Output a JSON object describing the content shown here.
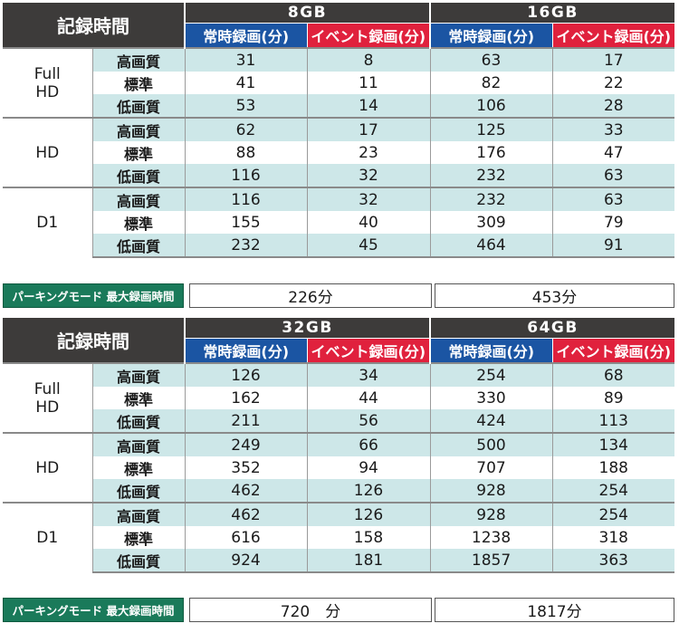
{
  "tables": [
    {
      "title": "記録時間",
      "caps": [
        "8GB",
        "16GB"
      ],
      "sub_continuous": "常時録画(分)",
      "sub_event": "イベント録画(分)",
      "groups": [
        {
          "name": "Full\nHD",
          "rows": [
            {
              "quality": "高画質",
              "values": [
                "31",
                "8",
                "63",
                "17"
              ]
            },
            {
              "quality": "標準",
              "values": [
                "41",
                "11",
                "82",
                "22"
              ]
            },
            {
              "quality": "低画質",
              "values": [
                "53",
                "14",
                "106",
                "28"
              ]
            }
          ]
        },
        {
          "name": "HD",
          "rows": [
            {
              "quality": "高画質",
              "values": [
                "62",
                "17",
                "125",
                "33"
              ]
            },
            {
              "quality": "標準",
              "values": [
                "88",
                "23",
                "176",
                "47"
              ]
            },
            {
              "quality": "低画質",
              "values": [
                "116",
                "32",
                "232",
                "63"
              ]
            }
          ]
        },
        {
          "name": "D1",
          "rows": [
            {
              "quality": "高画質",
              "values": [
                "116",
                "32",
                "232",
                "63"
              ]
            },
            {
              "quality": "標準",
              "values": [
                "155",
                "40",
                "309",
                "79"
              ]
            },
            {
              "quality": "低画質",
              "values": [
                "232",
                "45",
                "464",
                "91"
              ]
            }
          ]
        }
      ],
      "parking": {
        "label": "パーキングモード 最大録画時間",
        "values": [
          "226分",
          "453分"
        ]
      }
    },
    {
      "title": "記録時間",
      "caps": [
        "32GB",
        "64GB"
      ],
      "sub_continuous": "常時録画(分)",
      "sub_event": "イベント録画(分)",
      "groups": [
        {
          "name": "Full\nHD",
          "rows": [
            {
              "quality": "高画質",
              "values": [
                "126",
                "34",
                "254",
                "68"
              ]
            },
            {
              "quality": "標準",
              "values": [
                "162",
                "44",
                "330",
                "89"
              ]
            },
            {
              "quality": "低画質",
              "values": [
                "211",
                "56",
                "424",
                "113"
              ]
            }
          ]
        },
        {
          "name": "HD",
          "rows": [
            {
              "quality": "高画質",
              "values": [
                "249",
                "66",
                "500",
                "134"
              ]
            },
            {
              "quality": "標準",
              "values": [
                "352",
                "94",
                "707",
                "188"
              ]
            },
            {
              "quality": "低画質",
              "values": [
                "462",
                "126",
                "928",
                "254"
              ]
            }
          ]
        },
        {
          "name": "D1",
          "rows": [
            {
              "quality": "高画質",
              "values": [
                "462",
                "126",
                "928",
                "254"
              ]
            },
            {
              "quality": "標準",
              "values": [
                "616",
                "158",
                "1238",
                "318"
              ]
            },
            {
              "quality": "低画質",
              "values": [
                "924",
                "181",
                "1857",
                "363"
              ]
            }
          ]
        }
      ],
      "parking": {
        "label": "パーキングモード 最大録画時間",
        "values": [
          "720　分",
          "1817分"
        ]
      }
    }
  ]
}
